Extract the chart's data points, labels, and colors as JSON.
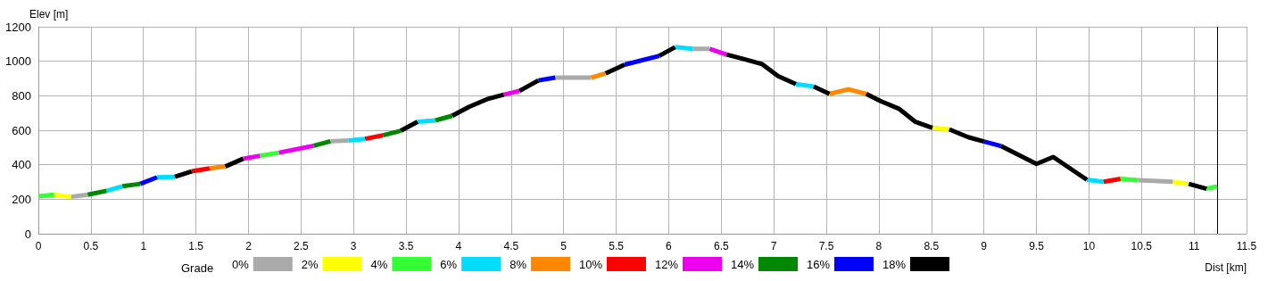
{
  "chart_data": {
    "type": "line",
    "xlabel": "Dist [km]",
    "ylabel": "Elev [m]",
    "legend_title": "Grade",
    "legend": "bottom",
    "grid": true,
    "marker": "none",
    "line_style": "solid",
    "xlim": [
      0,
      11.5
    ],
    "xticks": [
      0,
      0.5,
      1,
      1.5,
      2,
      2.5,
      3,
      3.5,
      4,
      4.5,
      5,
      5.5,
      6,
      6.5,
      7,
      7.5,
      8,
      8.5,
      9,
      9.5,
      10,
      10.5,
      11,
      11.5
    ],
    "ylim": [
      0,
      1200
    ],
    "yticks": [
      0,
      200,
      400,
      600,
      800,
      1000,
      1200
    ],
    "ref_lines": [
      {
        "axis": "x",
        "value": 11.22,
        "color": "#000000"
      }
    ],
    "series": [
      {
        "name": "0%",
        "color": "#aaaaaa",
        "x": [
          0.31,
          0.47,
          null,
          2.78,
          2.95,
          null,
          4.92,
          5.26,
          null,
          6.23,
          6.39,
          null,
          10.47,
          10.8
        ],
        "values": [
          214,
          226,
          null,
          536,
          540,
          null,
          905,
          905,
          null,
          1072,
          1072,
          null,
          310,
          301
        ]
      },
      {
        "name": "2%",
        "color": "#ffff00",
        "x": [
          0.15,
          0.31,
          null,
          8.51,
          8.67,
          null,
          10.8,
          10.95
        ],
        "values": [
          226,
          214,
          null,
          614,
          605,
          null,
          301,
          289
        ]
      },
      {
        "name": "4%",
        "color": "#33ff33",
        "x": [
          0,
          0.15,
          null,
          2.11,
          2.29,
          null,
          10.3,
          10.47,
          null,
          11.12,
          11.22
        ],
        "values": [
          217,
          226,
          null,
          452,
          470,
          null,
          318,
          310,
          null,
          261,
          275
        ]
      },
      {
        "name": "6%",
        "color": "#00ddff",
        "x": [
          0.65,
          0.8,
          null,
          1.13,
          1.3,
          null,
          2.95,
          3.11,
          null,
          3.61,
          3.78,
          null,
          6.06,
          6.23,
          null,
          7.21,
          7.38,
          null,
          9.98,
          10.14
        ],
        "values": [
          249,
          275,
          null,
          327,
          330,
          null,
          540,
          550,
          null,
          649,
          657,
          null,
          1082,
          1072,
          null,
          868,
          854,
          null,
          313,
          301
        ]
      },
      {
        "name": "8%",
        "color": "#ff8800",
        "x": [
          1.63,
          1.78,
          null,
          5.26,
          5.4,
          null,
          7.53,
          7.71,
          7.88
        ],
        "values": [
          379,
          390,
          null,
          905,
          930,
          null,
          811,
          837,
          811
        ]
      },
      {
        "name": "10%",
        "color": "#ff0000",
        "x": [
          1.46,
          1.63,
          null,
          3.11,
          3.28,
          null,
          10.14,
          10.3
        ],
        "values": [
          362,
          379,
          null,
          550,
          571,
          null,
          301,
          318
        ]
      },
      {
        "name": "12%",
        "color": "#ee00ee",
        "x": [
          1.95,
          2.11,
          null,
          2.29,
          2.62,
          null,
          4.43,
          4.58,
          null,
          6.39,
          6.55
        ],
        "values": [
          435,
          452,
          null,
          470,
          510,
          null,
          806,
          828,
          null,
          1072,
          1039
        ]
      },
      {
        "name": "14%",
        "color": "#008800",
        "x": [
          0.47,
          0.65,
          null,
          0.8,
          0.97,
          null,
          2.62,
          2.78,
          null,
          3.28,
          3.45,
          null,
          3.78,
          3.94
        ],
        "values": [
          226,
          249,
          null,
          275,
          289,
          null,
          510,
          536,
          null,
          571,
          597,
          null,
          657,
          684
        ]
      },
      {
        "name": "16%",
        "color": "#0000ff",
        "x": [
          0.97,
          1.13,
          null,
          4.76,
          4.92,
          null,
          5.58,
          5.91,
          null,
          9,
          9.16
        ],
        "values": [
          289,
          327,
          null,
          889,
          905,
          null,
          980,
          1031,
          null,
          535,
          509
        ]
      },
      {
        "name": "18%",
        "color": "#000000",
        "x": [
          1.3,
          1.46,
          null,
          1.78,
          1.95,
          null,
          3.45,
          3.61,
          null,
          3.94,
          4.1,
          4.27,
          4.43,
          null,
          4.58,
          4.76,
          null,
          5.4,
          5.58,
          null,
          5.91,
          6.06,
          null,
          6.55,
          6.72,
          6.89,
          7.04,
          7.21,
          null,
          7.38,
          7.53,
          null,
          7.88,
          8.02,
          8.19,
          8.35,
          8.51,
          null,
          8.67,
          8.85,
          9,
          null,
          9.16,
          9.5,
          9.66,
          9.98,
          null,
          10.95,
          11.12
        ],
        "values": [
          330,
          362,
          null,
          390,
          435,
          null,
          597,
          649,
          null,
          684,
          736,
          780,
          806,
          null,
          828,
          889,
          null,
          930,
          980,
          null,
          1031,
          1082,
          null,
          1039,
          1012,
          983,
          914,
          868,
          null,
          854,
          811,
          null,
          811,
          768,
          725,
          648,
          614,
          null,
          605,
          560,
          535,
          null,
          509,
          405,
          445,
          313,
          null,
          289,
          261
        ]
      }
    ]
  }
}
